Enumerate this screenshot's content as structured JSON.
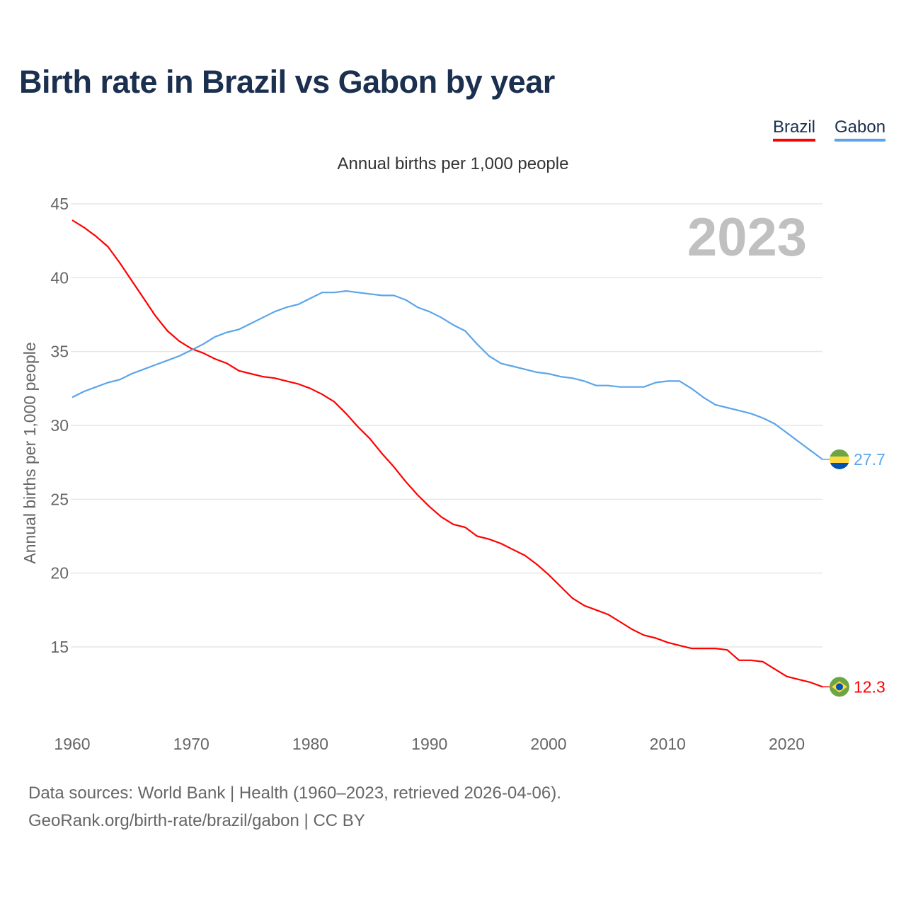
{
  "chart_data": {
    "type": "line",
    "title": "Birth rate in Brazil vs Gabon by year",
    "subtitle": "Annual births per 1,000 people",
    "ylabel": "Annual births per 1,000 people",
    "xlabel": "",
    "year_label": "2023",
    "ylim": [
      10,
      45
    ],
    "xlim": [
      1960,
      2023
    ],
    "yticks": [
      15,
      20,
      25,
      30,
      35,
      40,
      45
    ],
    "xticks": [
      1960,
      1970,
      1980,
      1990,
      2000,
      2010,
      2020
    ],
    "grid": true,
    "legend_position": "top-right",
    "x": [
      1960,
      1961,
      1962,
      1963,
      1964,
      1965,
      1966,
      1967,
      1968,
      1969,
      1970,
      1971,
      1972,
      1973,
      1974,
      1975,
      1976,
      1977,
      1978,
      1979,
      1980,
      1981,
      1982,
      1983,
      1984,
      1985,
      1986,
      1987,
      1988,
      1989,
      1990,
      1991,
      1992,
      1993,
      1994,
      1995,
      1996,
      1997,
      1998,
      1999,
      2000,
      2001,
      2002,
      2003,
      2004,
      2005,
      2006,
      2007,
      2008,
      2009,
      2010,
      2011,
      2012,
      2013,
      2014,
      2015,
      2016,
      2017,
      2018,
      2019,
      2020,
      2021,
      2022,
      2023
    ],
    "series": [
      {
        "name": "Brazil",
        "color": "#ff0000",
        "end_label": "12.3",
        "flag": "brazil-flag",
        "values": [
          43.9,
          43.4,
          42.8,
          42.1,
          41.0,
          39.8,
          38.6,
          37.4,
          36.4,
          35.7,
          35.2,
          34.9,
          34.5,
          34.2,
          33.7,
          33.5,
          33.3,
          33.2,
          33.0,
          32.8,
          32.5,
          32.1,
          31.6,
          30.8,
          29.9,
          29.1,
          28.1,
          27.2,
          26.2,
          25.3,
          24.5,
          23.8,
          23.3,
          23.1,
          22.5,
          22.3,
          22.0,
          21.6,
          21.2,
          20.6,
          19.9,
          19.1,
          18.3,
          17.8,
          17.5,
          17.2,
          16.7,
          16.2,
          15.8,
          15.6,
          15.3,
          15.1,
          14.9,
          14.9,
          14.9,
          14.8,
          14.1,
          14.1,
          14.0,
          13.5,
          13.0,
          12.8,
          12.6,
          12.3
        ]
      },
      {
        "name": "Gabon",
        "color": "#5aa5ea",
        "end_label": "27.7",
        "flag": "gabon-flag",
        "values": [
          31.9,
          32.3,
          32.6,
          32.9,
          33.1,
          33.5,
          33.8,
          34.1,
          34.4,
          34.7,
          35.1,
          35.5,
          36.0,
          36.3,
          36.5,
          36.9,
          37.3,
          37.7,
          38.0,
          38.2,
          38.6,
          39.0,
          39.0,
          39.1,
          39.0,
          38.9,
          38.8,
          38.8,
          38.5,
          38.0,
          37.7,
          37.3,
          36.8,
          36.4,
          35.5,
          34.7,
          34.2,
          34.0,
          33.8,
          33.6,
          33.5,
          33.3,
          33.2,
          33.0,
          32.7,
          32.7,
          32.6,
          32.6,
          32.6,
          32.9,
          33.0,
          33.0,
          32.5,
          31.9,
          31.4,
          31.2,
          31.0,
          30.8,
          30.5,
          30.1,
          29.5,
          28.9,
          28.3,
          27.7
        ]
      }
    ]
  },
  "legend": {
    "brazil": "Brazil",
    "gabon": "Gabon"
  },
  "footer": {
    "line1": "Data sources: World Bank | Health (1960–2023, retrieved 2026-04-06).",
    "line2": "GeoRank.org/birth-rate/brazil/gabon | CC BY"
  }
}
